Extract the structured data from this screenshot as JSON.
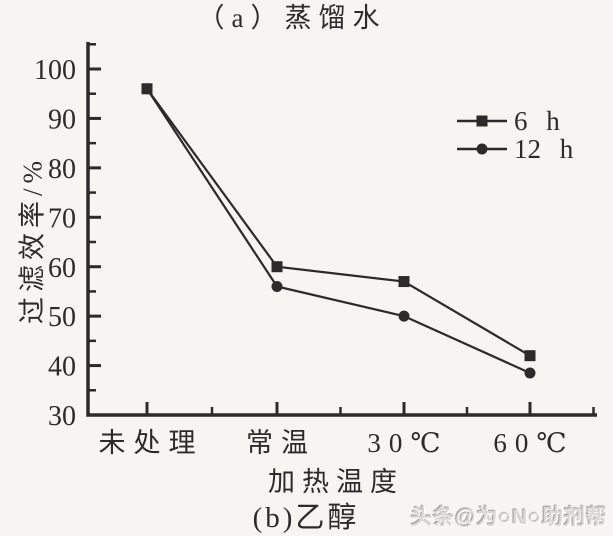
{
  "page": {
    "background_color": "#f6f5f2",
    "ink_color": "#2b2b2b",
    "watermark_color": "#d9d8d4"
  },
  "captions": {
    "top": "（a）蒸馏水",
    "bottom": "(b)乙醇"
  },
  "watermark": "头条@为○N○助剂帮",
  "chart_data": {
    "type": "line",
    "title": "(b)乙醇",
    "xlabel": "加热温度",
    "ylabel": "过滤效率/%",
    "categories": [
      "未处理",
      "常温",
      "30℃",
      "60℃"
    ],
    "series": [
      {
        "name": "6 h",
        "marker": "square",
        "values": [
          96,
          60,
          57,
          42
        ]
      },
      {
        "name": "12 h",
        "marker": "circle",
        "values": [
          96,
          56,
          50,
          38.5
        ]
      }
    ],
    "ylim": [
      30,
      105
    ],
    "yticks": [
      30,
      40,
      50,
      60,
      70,
      80,
      90,
      100
    ],
    "yticks_minor": [
      35,
      45,
      55,
      65,
      75,
      85,
      95,
      105
    ],
    "grid": false,
    "legend_position": "upper right",
    "line_color": "#2b2b2b",
    "marker_color": "#2b2b2b"
  }
}
